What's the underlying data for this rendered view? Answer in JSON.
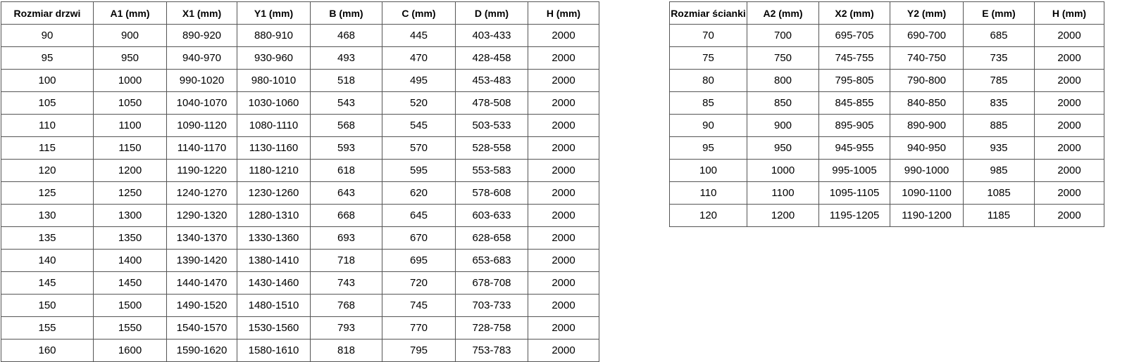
{
  "colors": {
    "background": "#ffffff",
    "table_border": "#555555",
    "text": "#000000"
  },
  "tables": {
    "door": {
      "title": "Rozmiar drzwi",
      "headers": [
        "Rozmiar drzwi",
        "A1 (mm)",
        "X1 (mm)",
        "Y1 (mm)",
        "B (mm)",
        "C (mm)",
        "D (mm)",
        "H (mm)"
      ],
      "rows": [
        [
          "90",
          "900",
          "890-920",
          "880-910",
          "468",
          "445",
          "403-433",
          "2000"
        ],
        [
          "95",
          "950",
          "940-970",
          "930-960",
          "493",
          "470",
          "428-458",
          "2000"
        ],
        [
          "100",
          "1000",
          "990-1020",
          "980-1010",
          "518",
          "495",
          "453-483",
          "2000"
        ],
        [
          "105",
          "1050",
          "1040-1070",
          "1030-1060",
          "543",
          "520",
          "478-508",
          "2000"
        ],
        [
          "110",
          "1100",
          "1090-1120",
          "1080-1110",
          "568",
          "545",
          "503-533",
          "2000"
        ],
        [
          "115",
          "1150",
          "1140-1170",
          "1130-1160",
          "593",
          "570",
          "528-558",
          "2000"
        ],
        [
          "120",
          "1200",
          "1190-1220",
          "1180-1210",
          "618",
          "595",
          "553-583",
          "2000"
        ],
        [
          "125",
          "1250",
          "1240-1270",
          "1230-1260",
          "643",
          "620",
          "578-608",
          "2000"
        ],
        [
          "130",
          "1300",
          "1290-1320",
          "1280-1310",
          "668",
          "645",
          "603-633",
          "2000"
        ],
        [
          "135",
          "1350",
          "1340-1370",
          "1330-1360",
          "693",
          "670",
          "628-658",
          "2000"
        ],
        [
          "140",
          "1400",
          "1390-1420",
          "1380-1410",
          "718",
          "695",
          "653-683",
          "2000"
        ],
        [
          "145",
          "1450",
          "1440-1470",
          "1430-1460",
          "743",
          "720",
          "678-708",
          "2000"
        ],
        [
          "150",
          "1500",
          "1490-1520",
          "1480-1510",
          "768",
          "745",
          "703-733",
          "2000"
        ],
        [
          "155",
          "1550",
          "1540-1570",
          "1530-1560",
          "793",
          "770",
          "728-758",
          "2000"
        ],
        [
          "160",
          "1600",
          "1590-1620",
          "1580-1610",
          "818",
          "795",
          "753-783",
          "2000"
        ]
      ]
    },
    "wall": {
      "title": "Rozmiar ścianki",
      "headers": [
        "Rozmiar ścianki",
        "A2 (mm)",
        "X2 (mm)",
        "Y2 (mm)",
        "E (mm)",
        "H (mm)"
      ],
      "rows": [
        [
          "70",
          "700",
          "695-705",
          "690-700",
          "685",
          "2000"
        ],
        [
          "75",
          "750",
          "745-755",
          "740-750",
          "735",
          "2000"
        ],
        [
          "80",
          "800",
          "795-805",
          "790-800",
          "785",
          "2000"
        ],
        [
          "85",
          "850",
          "845-855",
          "840-850",
          "835",
          "2000"
        ],
        [
          "90",
          "900",
          "895-905",
          "890-900",
          "885",
          "2000"
        ],
        [
          "95",
          "950",
          "945-955",
          "940-950",
          "935",
          "2000"
        ],
        [
          "100",
          "1000",
          "995-1005",
          "990-1000",
          "985",
          "2000"
        ],
        [
          "110",
          "1100",
          "1095-1105",
          "1090-1100",
          "1085",
          "2000"
        ],
        [
          "120",
          "1200",
          "1195-1205",
          "1190-1200",
          "1185",
          "2000"
        ]
      ]
    }
  }
}
